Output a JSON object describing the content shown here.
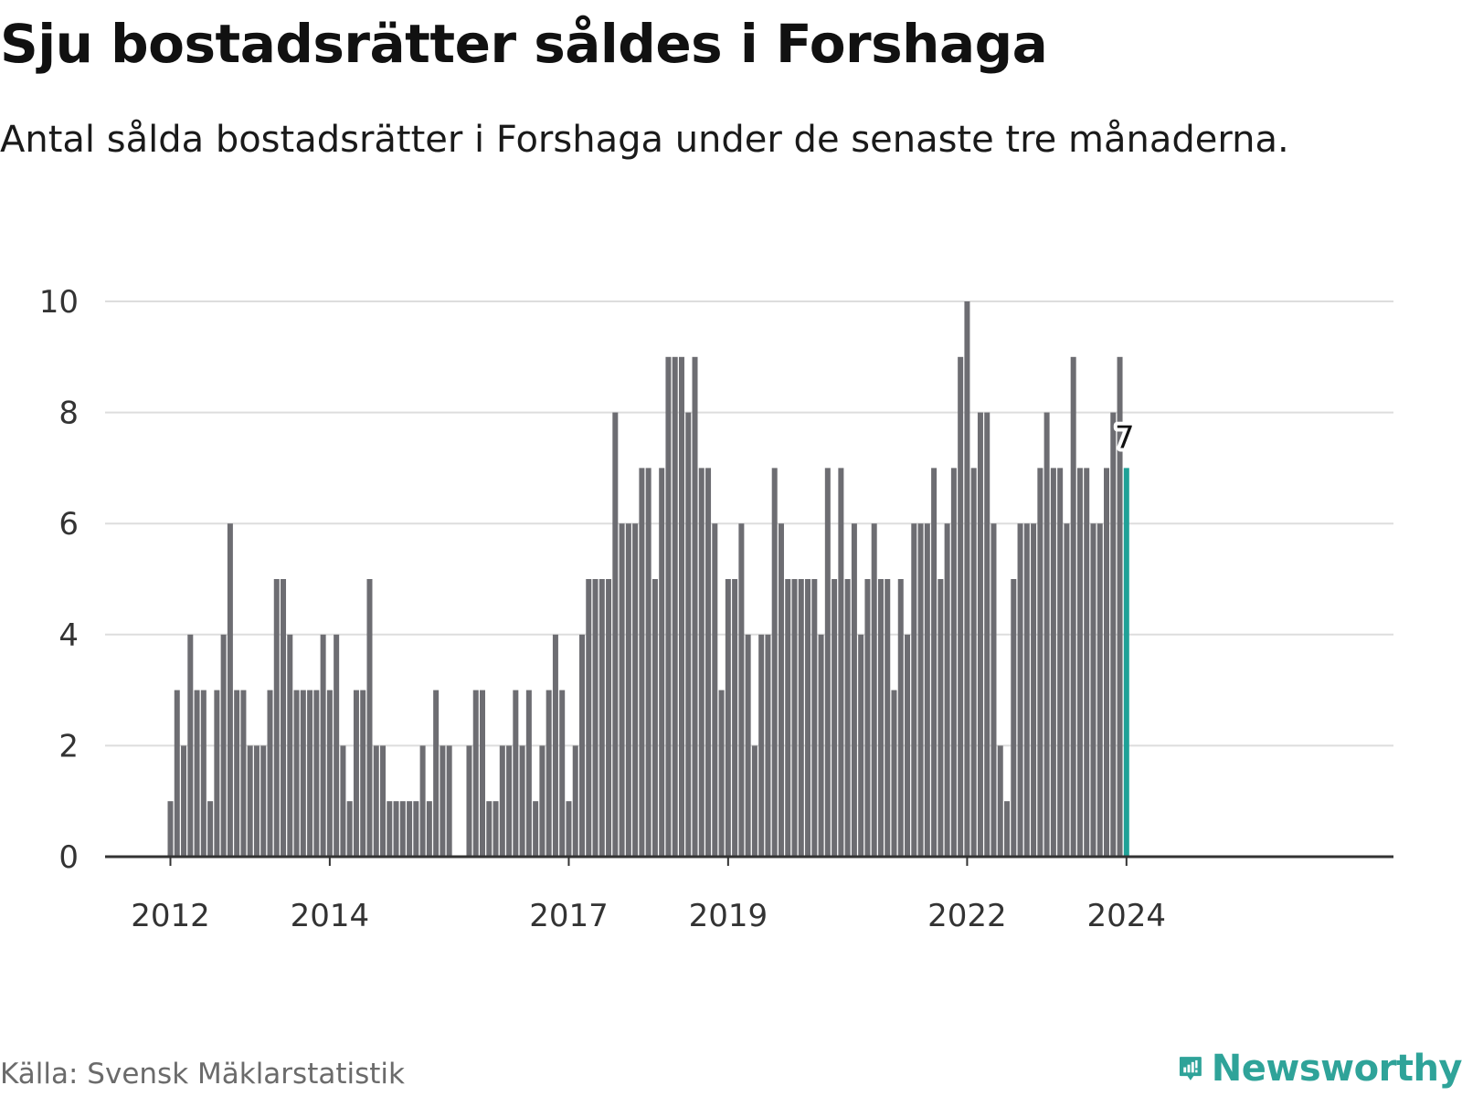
{
  "title": "Sju bostadsrätter såldes i Forshaga",
  "subtitle": "Antal sålda bostadsrätter i Forshaga under de senaste tre månaderna.",
  "source": "Källa: Svensk Mäklarstatistik",
  "brand": "Newsworthy",
  "colors": {
    "bar": "#6d6d72",
    "highlight": "#1fa197",
    "grid": "#dddddd",
    "axis": "#333333",
    "brand": "#2fa399"
  },
  "chart_data": {
    "type": "bar",
    "title": "Sju bostadsrätter såldes i Forshaga",
    "xlabel": "",
    "ylabel": "",
    "ylim": [
      0,
      10
    ],
    "yticks": [
      "0",
      "2",
      "4",
      "6",
      "8",
      "10"
    ],
    "xticks": [
      {
        "label": "2012",
        "index": 0
      },
      {
        "label": "2014",
        "index": 24
      },
      {
        "label": "2017",
        "index": 60
      },
      {
        "label": "2019",
        "index": 84
      },
      {
        "label": "2022",
        "index": 120
      },
      {
        "label": "2024",
        "index": 144
      }
    ],
    "period_start": "2012-01",
    "period_end": "2024-01",
    "values": [
      1,
      3,
      2,
      4,
      3,
      3,
      1,
      3,
      4,
      6,
      3,
      3,
      2,
      2,
      2,
      3,
      5,
      5,
      4,
      3,
      3,
      3,
      3,
      4,
      3,
      4,
      2,
      1,
      3,
      3,
      5,
      2,
      2,
      1,
      1,
      1,
      1,
      1,
      2,
      1,
      3,
      2,
      2,
      0,
      0,
      2,
      3,
      3,
      1,
      1,
      2,
      2,
      3,
      2,
      3,
      1,
      2,
      3,
      4,
      3,
      1,
      2,
      4,
      5,
      5,
      5,
      5,
      8,
      6,
      6,
      6,
      7,
      7,
      5,
      7,
      9,
      9,
      9,
      8,
      9,
      7,
      7,
      6,
      3,
      5,
      5,
      6,
      4,
      2,
      4,
      4,
      7,
      6,
      5,
      5,
      5,
      5,
      5,
      4,
      7,
      5,
      7,
      5,
      6,
      4,
      5,
      6,
      5,
      5,
      3,
      5,
      4,
      6,
      6,
      6,
      7,
      5,
      6,
      7,
      9,
      10,
      7,
      8,
      8,
      6,
      2,
      1,
      5,
      6,
      6,
      6,
      7,
      8,
      7,
      7,
      6,
      9,
      7,
      7,
      6,
      6,
      7,
      8,
      9,
      7
    ],
    "highlight_index": 144,
    "highlight_label": "7"
  }
}
